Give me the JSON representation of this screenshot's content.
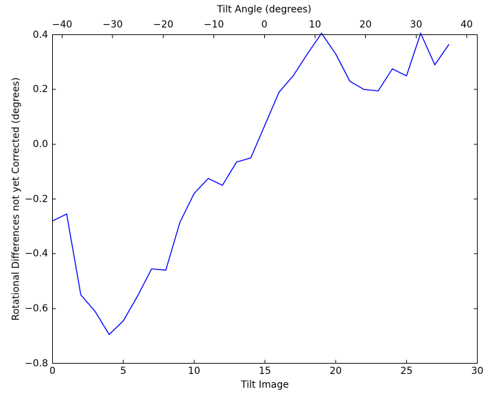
{
  "figure": {
    "background": "#ffffff",
    "frame_color": "#000000"
  },
  "chart_data": {
    "type": "line",
    "grid": false,
    "legend": null,
    "series_color": "#0000ff",
    "xlim": [
      0,
      30
    ],
    "ylim": [
      -0.8,
      0.4
    ],
    "x": [
      0,
      1,
      2,
      3,
      4,
      5,
      6,
      7,
      8,
      9,
      10,
      11,
      12,
      13,
      14,
      15,
      16,
      17,
      18,
      19,
      20,
      21,
      22,
      23,
      24,
      25,
      26,
      27,
      28
    ],
    "values": [
      -0.28,
      -0.255,
      -0.55,
      -0.61,
      -0.695,
      -0.645,
      -0.555,
      -0.455,
      -0.46,
      -0.285,
      -0.18,
      -0.125,
      -0.15,
      -0.065,
      -0.05,
      0.07,
      0.19,
      0.25,
      0.33,
      0.405,
      0.33,
      0.23,
      0.2,
      0.195,
      0.275,
      0.25,
      0.405,
      0.29,
      0.365
    ],
    "top_axis": {
      "label": "Tilt Angle (degrees)",
      "lim": [
        -41.9,
        42.1
      ],
      "tick_values": [
        -40,
        -30,
        -20,
        -10,
        0,
        10,
        20,
        30,
        40
      ],
      "tick_labels": [
        "−40",
        "−30",
        "−20",
        "−10",
        "0",
        "10",
        "20",
        "30",
        "40"
      ]
    },
    "bottom_axis": {
      "label": "Tilt Image",
      "tick_values": [
        0,
        5,
        10,
        15,
        20,
        25,
        30
      ],
      "tick_labels": [
        "0",
        "5",
        "10",
        "15",
        "20",
        "25",
        "30"
      ]
    },
    "y_axis": {
      "label": "Rotational Differences not yet Corrected (degrees)",
      "tick_values": [
        0.4,
        0.2,
        0.0,
        -0.2,
        -0.4,
        -0.6,
        -0.8
      ],
      "tick_labels": [
        "0.4",
        "0.2",
        "0.0",
        "−0.2",
        "−0.4",
        "−0.6",
        "−0.8"
      ]
    }
  }
}
